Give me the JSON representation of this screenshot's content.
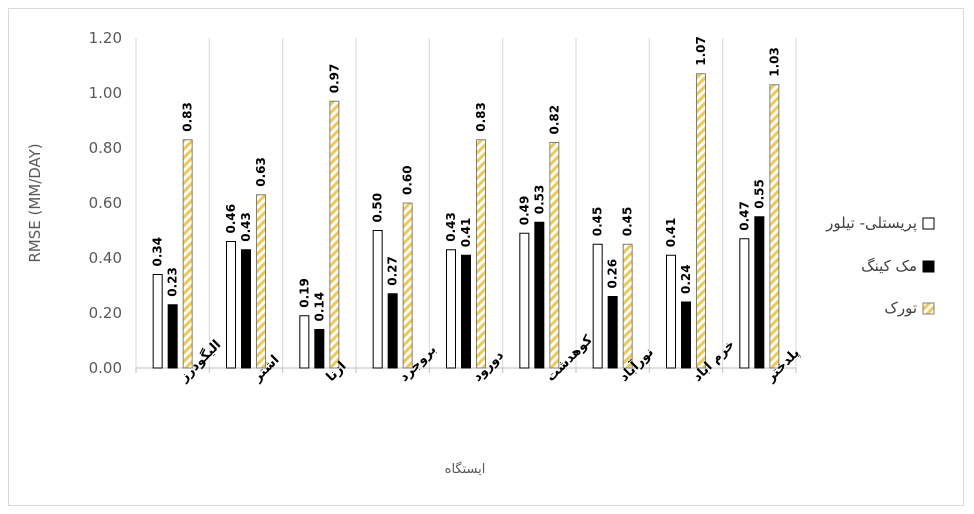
{
  "chart_data": {
    "type": "bar",
    "title": "",
    "xlabel": "ایستگاه",
    "ylabel": "RMSE (MM/DAY)",
    "ylim": [
      0,
      1.2
    ],
    "y_ticks": [
      "0.00",
      "0.20",
      "0.40",
      "0.60",
      "0.80",
      "1.00",
      "1.20"
    ],
    "grid": "vertical category gridlines",
    "legend_position": "right",
    "categories": [
      "الیگودرز",
      "اشتر",
      "ازنا",
      "بروجرد",
      "دورود",
      "کوهدشت",
      "نورآباد",
      "خرم اباد",
      "پلدختر"
    ],
    "series": [
      {
        "name": "پریستلی- تیلور",
        "values": [
          0.34,
          0.46,
          0.19,
          0.5,
          0.43,
          0.49,
          0.45,
          0.41,
          0.47
        ],
        "labels": [
          "0.34",
          "0.46",
          "0.19",
          "0.50",
          "0.43",
          "0.49",
          "0.45",
          "0.41",
          "0.47"
        ],
        "style": "hollow",
        "color": "#ffffff"
      },
      {
        "name": "مک کینگ",
        "values": [
          0.23,
          0.43,
          0.14,
          0.27,
          0.41,
          0.53,
          0.26,
          0.24,
          0.55
        ],
        "labels": [
          "0.23",
          "0.43",
          "0.14",
          "0.27",
          "0.41",
          "0.53",
          "0.26",
          "0.24",
          "0.55"
        ],
        "style": "solid",
        "color": "#000000"
      },
      {
        "name": "تورک",
        "values": [
          0.83,
          0.63,
          0.97,
          0.6,
          0.83,
          0.82,
          0.45,
          1.07,
          1.03
        ],
        "labels": [
          "0.83",
          "0.63",
          "0.97",
          "0.60",
          "0.83",
          "0.82",
          "0.45",
          "1.07",
          "1.03"
        ],
        "style": "striped",
        "color": "#f2c94c"
      }
    ]
  }
}
